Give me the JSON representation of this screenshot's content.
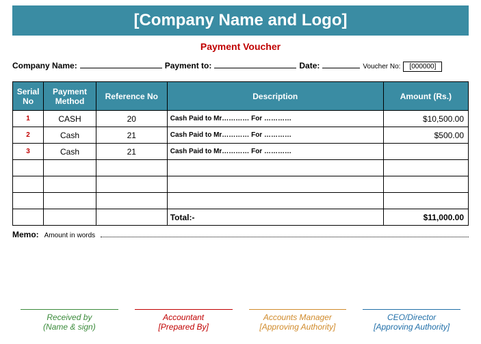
{
  "header": {
    "company_banner": "[Company Name and Logo]",
    "voucher_title": "Payment Voucher"
  },
  "info": {
    "company_name_label": "Company Name:",
    "payment_to_label": "Payment to:",
    "date_label": "Date:",
    "voucher_no_label": "Voucher No:",
    "voucher_no_value": "[000000]"
  },
  "table": {
    "headers": {
      "serial": "Serial No",
      "method": "Payment Method",
      "reference": "Reference No",
      "description": "Description",
      "amount": "Amount (Rs.)"
    },
    "rows": [
      {
        "serial": "1",
        "method": "CASH",
        "reference": "20",
        "description": "Cash Paid to Mr………… For …………",
        "amount": "$10,500.00"
      },
      {
        "serial": "2",
        "method": "Cash",
        "reference": "21",
        "description": "Cash Paid to Mr………… For …………",
        "amount": "$500.00"
      },
      {
        "serial": "3",
        "method": "Cash",
        "reference": "21",
        "description": "Cash Paid to Mr………… For …………",
        "amount": ""
      }
    ],
    "total_label": "Total:-",
    "total_amount": "$11,000.00"
  },
  "memo": {
    "label": "Memo:",
    "sub": "Amount in words"
  },
  "signatures": {
    "s1": {
      "title": "Received by",
      "sub": "(Name & sign)"
    },
    "s2": {
      "title": "Accountant",
      "sub": "[Prepared By]"
    },
    "s3": {
      "title": "Accounts Manager",
      "sub": "[Approving Authority]"
    },
    "s4": {
      "title": "CEO/Director",
      "sub": "[Approving Authority]"
    }
  },
  "colors": {
    "banner_bg": "#3a8ca3",
    "accent_red": "#c00000",
    "sig_green": "#3a8a3a",
    "sig_orange": "#d08a2a",
    "sig_blue": "#1f6ea8"
  }
}
